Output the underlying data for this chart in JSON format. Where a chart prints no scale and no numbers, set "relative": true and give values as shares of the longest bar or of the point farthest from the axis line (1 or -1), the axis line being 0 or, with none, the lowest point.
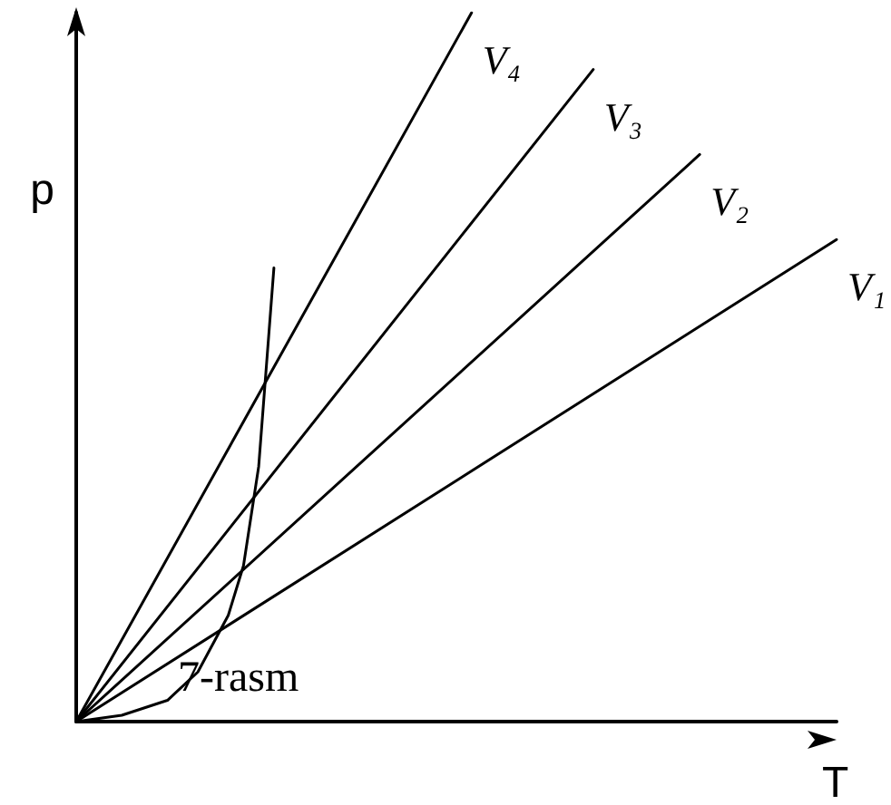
{
  "chart_data": {
    "type": "line",
    "relative": true,
    "xlabel": "T",
    "ylabel": "p",
    "annotations": [
      "7-rasm"
    ],
    "legend": false,
    "grid": false,
    "marker": "none",
    "line_style": "solid",
    "categories": [
      null,
      null,
      null,
      null,
      null,
      null,
      null,
      null,
      null,
      null,
      null,
      null,
      null,
      null,
      null,
      null,
      null,
      null,
      null,
      null,
      null,
      null,
      null,
      null,
      null,
      null,
      null,
      null,
      null,
      null,
      null,
      null,
      null,
      null,
      null,
      null,
      null,
      null,
      null,
      null,
      null,
      null,
      null,
      null,
      null,
      null,
      null,
      null,
      null,
      null,
      null
    ],
    "series": [
      {
        "name": "V₁",
        "color": "#000000",
        "values": [
          0,
          null,
          null,
          null,
          null,
          null,
          null,
          null,
          null,
          null,
          null,
          null,
          null,
          null,
          null,
          null,
          null,
          null,
          null,
          null,
          null,
          null,
          null,
          null,
          null,
          null,
          null,
          null,
          null,
          null,
          null,
          null,
          null,
          null,
          null,
          null,
          null,
          null,
          null,
          null,
          null,
          null,
          null,
          null,
          null,
          null,
          null,
          null,
          null,
          null,
          0.68
        ]
      },
      {
        "name": "V₂",
        "color": "#000000",
        "values": [
          0,
          null,
          null,
          null,
          null,
          null,
          null,
          null,
          null,
          null,
          null,
          null,
          null,
          null,
          null,
          null,
          null,
          null,
          null,
          null,
          null,
          null,
          null,
          null,
          null,
          null,
          null,
          null,
          null,
          null,
          null,
          null,
          null,
          null,
          null,
          null,
          null,
          null,
          null,
          null,
          null,
          0.8,
          null,
          null,
          null,
          null,
          null,
          null,
          null,
          null,
          null
        ]
      },
      {
        "name": "V₃",
        "color": "#000000",
        "values": [
          0,
          null,
          null,
          null,
          null,
          null,
          null,
          null,
          null,
          null,
          null,
          null,
          null,
          null,
          null,
          null,
          null,
          null,
          null,
          null,
          null,
          null,
          null,
          null,
          null,
          null,
          null,
          null,
          null,
          null,
          null,
          null,
          null,
          null,
          0.92,
          null,
          null,
          null,
          null,
          null,
          null,
          null,
          null,
          null,
          null,
          null,
          null,
          null,
          null,
          null,
          null
        ]
      },
      {
        "name": "V₄",
        "color": "#000000",
        "values": [
          0,
          null,
          null,
          null,
          null,
          null,
          null,
          null,
          null,
          null,
          null,
          null,
          null,
          null,
          null,
          null,
          null,
          null,
          null,
          null,
          null,
          null,
          null,
          null,
          null,
          null,
          1,
          null,
          null,
          null,
          null,
          null,
          null,
          null,
          null,
          null,
          null,
          null,
          null,
          null,
          null,
          null,
          null,
          null,
          null,
          null,
          null,
          null,
          null,
          null,
          null
        ]
      },
      {
        "color": "#000000",
        "values": [
          0,
          null,
          null,
          0.009,
          null,
          null,
          0.03,
          null,
          0.07,
          null,
          0.15,
          0.22,
          0.36,
          0.64,
          null,
          null,
          null,
          null,
          null,
          null,
          null,
          null,
          null,
          null,
          null,
          null,
          null,
          null,
          null,
          null,
          null,
          null,
          null,
          null,
          null,
          null,
          null,
          null,
          null,
          null,
          null,
          null,
          null,
          null,
          null,
          null,
          null,
          null,
          null,
          null,
          null
        ]
      }
    ]
  }
}
